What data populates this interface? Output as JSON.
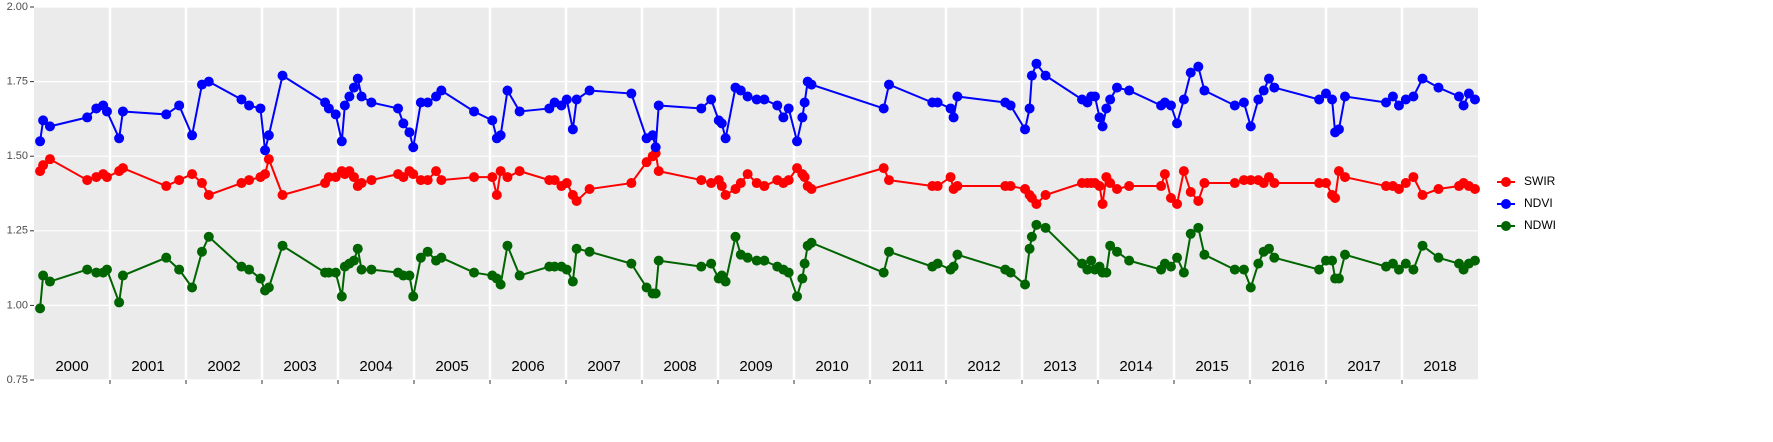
{
  "chart_data": {
    "type": "line",
    "x": [
      2000.08,
      2000.12,
      2000.21,
      2000.7,
      2000.82,
      2000.91,
      2000.96,
      2001.12,
      2001.17,
      2001.74,
      2001.91,
      2002.08,
      2002.21,
      2002.3,
      2002.73,
      2002.83,
      2002.98,
      2003.04,
      2003.09,
      2003.27,
      2003.83,
      2003.88,
      2003.97,
      2004.05,
      2004.09,
      2004.15,
      2004.21,
      2004.26,
      2004.31,
      2004.44,
      2004.79,
      2004.86,
      2004.94,
      2004.99,
      2005.09,
      2005.18,
      2005.29,
      2005.36,
      2005.79,
      2006.03,
      2006.09,
      2006.14,
      2006.23,
      2006.39,
      2006.78,
      2006.85,
      2006.94,
      2007.01,
      2007.09,
      2007.14,
      2007.31,
      2007.86,
      2008.06,
      2008.14,
      2008.18,
      2008.22,
      2008.78,
      2008.91,
      2009.01,
      2009.05,
      2009.1,
      2009.23,
      2009.3,
      2009.39,
      2009.51,
      2009.61,
      2009.78,
      2009.86,
      2009.93,
      2010.04,
      2010.11,
      2010.14,
      2010.18,
      2010.23,
      2011.18,
      2011.25,
      2011.82,
      2011.89,
      2012.06,
      2012.1,
      2012.15,
      2012.78,
      2012.85,
      2013.04,
      2013.1,
      2013.13,
      2013.19,
      2013.31,
      2013.79,
      2013.86,
      2013.91,
      2013.96,
      2014.02,
      2014.06,
      2014.11,
      2014.16,
      2014.25,
      2014.41,
      2014.83,
      2014.88,
      2014.96,
      2015.04,
      2015.13,
      2015.22,
      2015.32,
      2015.4,
      2015.8,
      2015.92,
      2016.01,
      2016.11,
      2016.18,
      2016.25,
      2016.32,
      2016.91,
      2017.0,
      2017.08,
      2017.12,
      2017.17,
      2017.25,
      2017.79,
      2017.88,
      2017.96,
      2018.05,
      2018.15,
      2018.27,
      2018.48,
      2018.75,
      2018.81,
      2018.88,
      2018.96
    ],
    "series": [
      {
        "name": "SWIR",
        "color": "#ff0000",
        "values": [
          1.45,
          1.47,
          1.49,
          1.42,
          1.43,
          1.44,
          1.43,
          1.45,
          1.46,
          1.4,
          1.42,
          1.44,
          1.41,
          1.37,
          1.41,
          1.42,
          1.43,
          1.44,
          1.49,
          1.37,
          1.41,
          1.43,
          1.43,
          1.45,
          1.44,
          1.45,
          1.43,
          1.4,
          1.41,
          1.42,
          1.44,
          1.43,
          1.45,
          1.44,
          1.42,
          1.42,
          1.45,
          1.42,
          1.43,
          1.43,
          1.37,
          1.45,
          1.43,
          1.45,
          1.42,
          1.42,
          1.4,
          1.41,
          1.37,
          1.35,
          1.39,
          1.41,
          1.48,
          1.5,
          1.51,
          1.45,
          1.42,
          1.41,
          1.42,
          1.4,
          1.37,
          1.39,
          1.41,
          1.44,
          1.41,
          1.4,
          1.42,
          1.41,
          1.42,
          1.46,
          1.44,
          1.43,
          1.4,
          1.39,
          1.46,
          1.42,
          1.4,
          1.4,
          1.43,
          1.39,
          1.4,
          1.4,
          1.4,
          1.39,
          1.37,
          1.36,
          1.34,
          1.37,
          1.41,
          1.41,
          1.41,
          1.41,
          1.4,
          1.34,
          1.43,
          1.41,
          1.39,
          1.4,
          1.4,
          1.44,
          1.36,
          1.34,
          1.45,
          1.38,
          1.35,
          1.41,
          1.41,
          1.42,
          1.42,
          1.42,
          1.41,
          1.43,
          1.41,
          1.41,
          1.41,
          1.37,
          1.36,
          1.45,
          1.43,
          1.4,
          1.4,
          1.39,
          1.41,
          1.43,
          1.37,
          1.39,
          1.4,
          1.41,
          1.4,
          1.39
        ]
      },
      {
        "name": "NDVI",
        "color": "#0000ff",
        "values": [
          1.55,
          1.62,
          1.6,
          1.63,
          1.66,
          1.67,
          1.65,
          1.56,
          1.65,
          1.64,
          1.67,
          1.57,
          1.74,
          1.75,
          1.69,
          1.67,
          1.66,
          1.52,
          1.57,
          1.77,
          1.68,
          1.66,
          1.64,
          1.55,
          1.67,
          1.7,
          1.73,
          1.76,
          1.7,
          1.68,
          1.66,
          1.61,
          1.58,
          1.53,
          1.68,
          1.68,
          1.7,
          1.72,
          1.65,
          1.62,
          1.56,
          1.57,
          1.72,
          1.65,
          1.66,
          1.68,
          1.67,
          1.69,
          1.59,
          1.69,
          1.72,
          1.71,
          1.56,
          1.57,
          1.53,
          1.67,
          1.66,
          1.69,
          1.62,
          1.61,
          1.56,
          1.73,
          1.72,
          1.7,
          1.69,
          1.69,
          1.67,
          1.63,
          1.66,
          1.55,
          1.63,
          1.68,
          1.75,
          1.74,
          1.66,
          1.74,
          1.68,
          1.68,
          1.66,
          1.63,
          1.7,
          1.68,
          1.67,
          1.59,
          1.66,
          1.77,
          1.81,
          1.77,
          1.69,
          1.68,
          1.7,
          1.7,
          1.63,
          1.6,
          1.66,
          1.69,
          1.73,
          1.72,
          1.67,
          1.68,
          1.67,
          1.61,
          1.69,
          1.78,
          1.8,
          1.72,
          1.67,
          1.68,
          1.6,
          1.69,
          1.72,
          1.76,
          1.73,
          1.69,
          1.71,
          1.69,
          1.58,
          1.59,
          1.7,
          1.68,
          1.7,
          1.67,
          1.69,
          1.7,
          1.76,
          1.73,
          1.7,
          1.67,
          1.71,
          1.69
        ]
      },
      {
        "name": "NDWI",
        "color": "#006400",
        "values": [
          0.99,
          1.1,
          1.08,
          1.12,
          1.11,
          1.11,
          1.12,
          1.01,
          1.1,
          1.16,
          1.12,
          1.06,
          1.18,
          1.23,
          1.13,
          1.12,
          1.09,
          1.05,
          1.06,
          1.2,
          1.11,
          1.11,
          1.11,
          1.03,
          1.13,
          1.14,
          1.15,
          1.19,
          1.12,
          1.12,
          1.11,
          1.1,
          1.1,
          1.03,
          1.16,
          1.18,
          1.15,
          1.16,
          1.11,
          1.1,
          1.09,
          1.07,
          1.2,
          1.1,
          1.13,
          1.13,
          1.13,
          1.12,
          1.08,
          1.19,
          1.18,
          1.14,
          1.06,
          1.04,
          1.04,
          1.15,
          1.13,
          1.14,
          1.09,
          1.1,
          1.08,
          1.23,
          1.17,
          1.16,
          1.15,
          1.15,
          1.13,
          1.12,
          1.11,
          1.03,
          1.09,
          1.14,
          1.2,
          1.21,
          1.11,
          1.18,
          1.13,
          1.14,
          1.12,
          1.13,
          1.17,
          1.12,
          1.11,
          1.07,
          1.19,
          1.23,
          1.27,
          1.26,
          1.14,
          1.12,
          1.15,
          1.12,
          1.13,
          1.11,
          1.11,
          1.2,
          1.18,
          1.15,
          1.12,
          1.14,
          1.13,
          1.16,
          1.11,
          1.24,
          1.26,
          1.17,
          1.12,
          1.12,
          1.06,
          1.14,
          1.18,
          1.19,
          1.16,
          1.12,
          1.15,
          1.15,
          1.09,
          1.09,
          1.17,
          1.13,
          1.14,
          1.12,
          1.14,
          1.12,
          1.2,
          1.16,
          1.14,
          1.12,
          1.14,
          1.15
        ]
      }
    ],
    "xlim": [
      2000,
      2019
    ],
    "xticks": [
      2001,
      2002,
      2003,
      2004,
      2005,
      2006,
      2007,
      2008,
      2009,
      2010,
      2011,
      2012,
      2013,
      2014,
      2015,
      2016,
      2017,
      2018
    ],
    "year_labels": [
      "2000",
      "2001",
      "2002",
      "2003",
      "2004",
      "2005",
      "2006",
      "2007",
      "2008",
      "2009",
      "2010",
      "2011",
      "2012",
      "2013",
      "2014",
      "2015",
      "2016",
      "2017",
      "2018"
    ],
    "ylim": [
      0.75,
      2.0
    ],
    "yticks": [
      0.75,
      {
        "value": 1,
        "label": "1.00"
      },
      1.25,
      {
        "value": 1.5,
        "label": "1.50"
      },
      1.75,
      {
        "value": 2,
        "label": "2.00"
      }
    ],
    "grid": true,
    "legend": "right"
  }
}
